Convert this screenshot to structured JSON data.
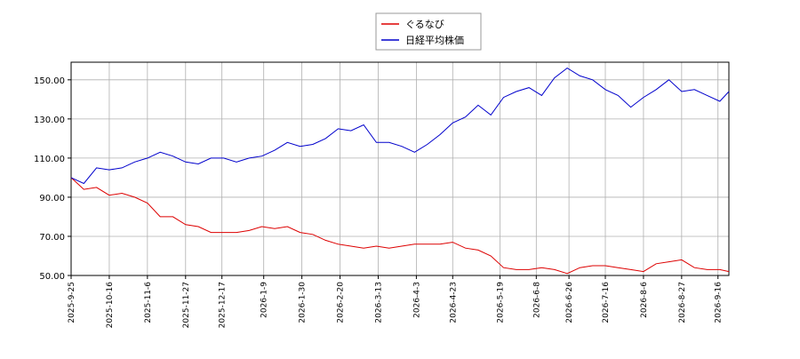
{
  "chart_data": {
    "type": "line",
    "x": [
      "2025-9-25",
      "2025-10-2",
      "2025-10-9",
      "2025-10-16",
      "2025-10-23",
      "2025-10-30",
      "2025-11-6",
      "2025-11-13",
      "2025-11-20",
      "2025-11-27",
      "2025-12-4",
      "2025-12-11",
      "2025-12-18",
      "2025-12-25",
      "2026-1-1",
      "2026-1-8",
      "2026-1-15",
      "2026-1-22",
      "2026-1-29",
      "2026-2-5",
      "2026-2-12",
      "2026-2-19",
      "2026-2-26",
      "2026-3-5",
      "2026-3-12",
      "2026-3-19",
      "2026-3-26",
      "2026-4-2",
      "2026-4-9",
      "2026-4-16",
      "2026-4-23",
      "2026-4-30",
      "2026-5-7",
      "2026-5-14",
      "2026-5-21",
      "2026-5-28",
      "2026-6-4",
      "2026-6-11",
      "2026-6-18",
      "2026-6-25",
      "2026-7-2",
      "2026-7-9",
      "2026-7-16",
      "2026-7-23",
      "2026-7-30",
      "2026-8-6",
      "2026-8-13",
      "2026-8-20",
      "2026-8-27",
      "2026-9-3",
      "2026-9-10",
      "2026-9-17",
      "2026-9-22"
    ],
    "series": [
      {
        "name": "ぐるなび",
        "color": "#dd0000",
        "values": [
          100,
          94,
          95,
          91,
          92,
          90,
          87,
          80,
          80,
          76,
          75,
          72,
          72,
          72,
          73,
          75,
          74,
          75,
          72,
          71,
          68,
          66,
          65,
          64,
          65,
          64,
          65,
          66,
          66,
          66,
          67,
          64,
          63,
          60,
          54,
          53,
          53,
          54,
          53,
          51,
          54,
          55,
          55,
          54,
          53,
          52,
          56,
          57,
          58,
          54,
          53,
          53,
          52
        ]
      },
      {
        "name": "日経平均株価",
        "color": "#0000cc",
        "values": [
          100,
          97,
          105,
          104,
          105,
          108,
          110,
          113,
          111,
          108,
          107,
          110,
          110,
          108,
          110,
          111,
          114,
          118,
          116,
          117,
          120,
          125,
          124,
          127,
          118,
          118,
          116,
          113,
          117,
          122,
          128,
          131,
          137,
          132,
          141,
          144,
          146,
          142,
          151,
          156,
          152,
          150,
          145,
          142,
          136,
          141,
          145,
          150,
          144,
          145,
          142,
          139,
          144
        ]
      }
    ],
    "xlim": [
      "2025-9-25",
      "2026-9-22"
    ],
    "xticks": [
      "2025-9-25",
      "2025-10-16",
      "2025-11-6",
      "2025-11-27",
      "2025-12-17",
      "2026-1-9",
      "2026-1-30",
      "2026-2-20",
      "2026-3-13",
      "2026-4-3",
      "2026-4-23",
      "2026-5-19",
      "2026-6-8",
      "2026-6-26",
      "2026-7-16",
      "2026-8-6",
      "2026-8-27",
      "2026-9-16"
    ],
    "ylim": [
      50,
      159
    ],
    "yticks": [
      {
        "value": 50,
        "label": "50.00"
      },
      {
        "value": 70,
        "label": "70.00"
      },
      {
        "value": 90,
        "label": "90.00"
      },
      {
        "value": 110,
        "label": "110.00"
      },
      {
        "value": 130,
        "label": "130.00"
      },
      {
        "value": 150,
        "label": "150.00"
      }
    ],
    "grid": true,
    "legend": "top"
  }
}
